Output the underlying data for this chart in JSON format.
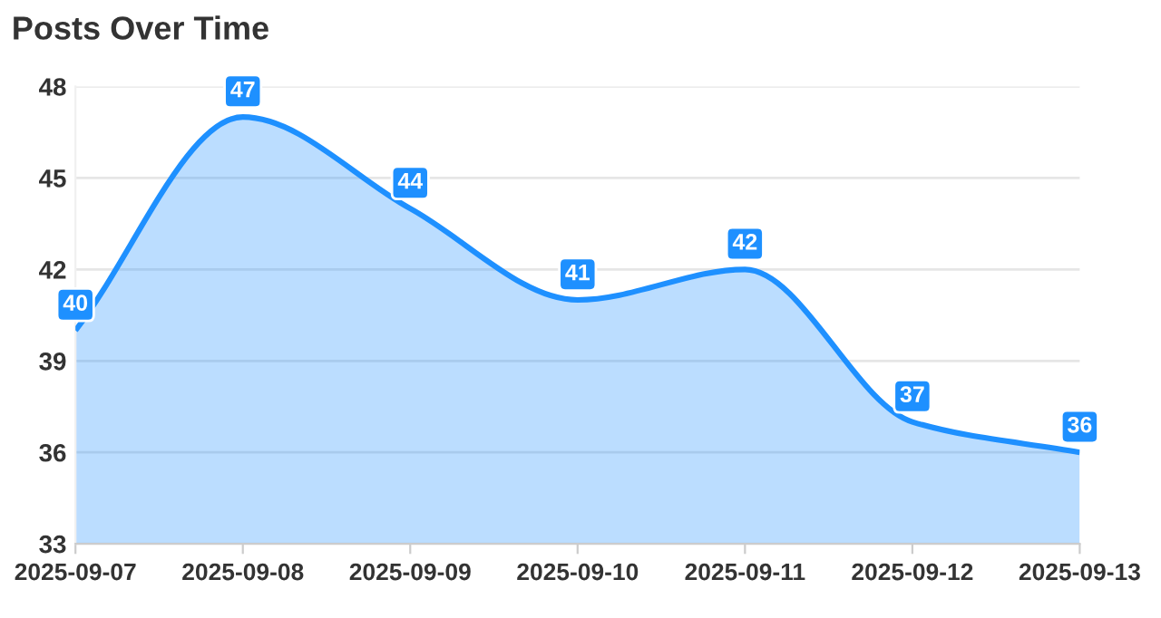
{
  "chart_data": {
    "type": "area",
    "title": "Posts Over Time",
    "categories": [
      "2025-09-07",
      "2025-09-08",
      "2025-09-09",
      "2025-09-10",
      "2025-09-11",
      "2025-09-12",
      "2025-09-13"
    ],
    "series": [
      {
        "color": "#1e90ff",
        "values": [
          40,
          47,
          44,
          41,
          42,
          37,
          36
        ]
      }
    ],
    "ylim": [
      33,
      48
    ],
    "yticks": [
      33,
      36,
      39,
      42,
      45,
      48
    ],
    "grid": "y",
    "data_labels": true
  }
}
